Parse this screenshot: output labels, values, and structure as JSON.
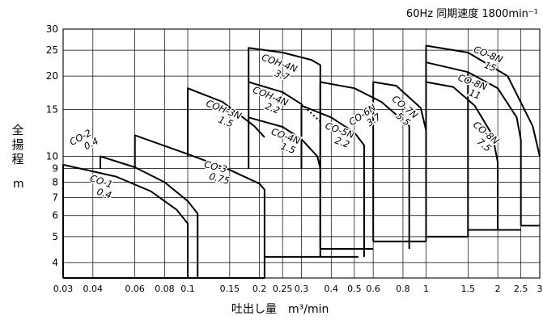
{
  "chart_data": {
    "type": "line",
    "title": "60Hz 同期速度 1800min⁻¹",
    "xlabel": "吐出し量　m³/min",
    "ylabel": "全揚程",
    "yunit": "m",
    "x_scale": "log",
    "y_scale": "log",
    "xlim": [
      0.03,
      3
    ],
    "ylim": [
      3.5,
      30
    ],
    "x_ticks": [
      0.03,
      0.04,
      0.06,
      0.08,
      0.1,
      0.15,
      0.2,
      0.25,
      0.3,
      0.4,
      0.5,
      0.6,
      0.8,
      1,
      1.5,
      2,
      2.5,
      3
    ],
    "x_tick_labels": [
      "0.03",
      "0.04",
      "0.06",
      "0.08",
      "0.1",
      "0.15",
      "0.2",
      "0.25",
      "0.3",
      "0.4",
      "0.5",
      "0.6",
      "0.8",
      "1",
      "1.5",
      "2",
      "2.5",
      "3"
    ],
    "y_ticks": [
      4,
      5,
      6,
      7,
      8,
      9,
      10,
      15,
      20,
      25,
      30
    ],
    "y_tick_labels": [
      "4",
      "5",
      "6",
      "7",
      "8",
      "9",
      "10",
      "15",
      "20",
      "25",
      "30"
    ],
    "grid": true,
    "series": [
      {
        "name": "CO-1 0.4",
        "label_lines": [
          "CO-1",
          "0.4"
        ],
        "label_at": [
          0.043,
          7.85
        ],
        "rotate": 18,
        "x": [
          0.03,
          0.03,
          0.05,
          0.07,
          0.09,
          0.1,
          0.1,
          0.03
        ],
        "y": [
          3.5,
          9.3,
          8.4,
          7.4,
          6.3,
          5.6,
          3.5,
          3.5
        ]
      },
      {
        "name": "CO-2 0.4",
        "label_lines": [
          "CO-2",
          "0.4"
        ],
        "label_at": [
          0.036,
          11.5
        ],
        "rotate": -28,
        "x": [
          0.043,
          0.043,
          0.06,
          0.08,
          0.1,
          0.11,
          0.11,
          0.043
        ],
        "y": [
          9.0,
          10.0,
          9.1,
          8.0,
          6.8,
          6.1,
          3.5,
          3.5
        ]
      },
      {
        "name": "CO-3 0.75",
        "label_lines": [
          "CO-3",
          "0.75"
        ],
        "label_at": [
          0.13,
          8.9
        ],
        "rotate": 14,
        "x": [
          0.06,
          0.06,
          0.1,
          0.15,
          0.2,
          0.21,
          0.21,
          0.06
        ],
        "y": [
          9.0,
          12.0,
          10.2,
          8.9,
          7.9,
          7.5,
          3.5,
          3.5
        ]
      },
      {
        "name": "COH-3N 1.5",
        "label_lines": [
          "COH-3N",
          "1.5"
        ],
        "label_at": [
          0.14,
          14.6
        ],
        "rotate": 22,
        "x": [
          0.1,
          0.1,
          0.14,
          0.19,
          0.21
        ],
        "y": [
          10.0,
          18.0,
          16.0,
          13.0,
          11.8
        ]
      },
      {
        "name": "CO-4N 1.5",
        "label_lines": [
          "CO-4N",
          "1.5"
        ],
        "label_at": [
          0.255,
          11.6
        ],
        "rotate": 20,
        "x": [
          0.18,
          0.18,
          0.25,
          0.3,
          0.35,
          0.36,
          0.36
        ],
        "y": [
          9.0,
          14.0,
          12.9,
          11.6,
          10.0,
          9.0,
          4.2
        ]
      },
      {
        "name": "COH-4N 3.7",
        "label_lines": [
          "COH-4N",
          "3.7"
        ],
        "label_at": [
          0.24,
          21.8
        ],
        "rotate": 20,
        "x": [
          0.18,
          0.18,
          0.25,
          0.33,
          0.36,
          0.36
        ],
        "y": [
          19.0,
          25.5,
          24.5,
          23.0,
          22.0,
          9.0
        ]
      },
      {
        "name": "COH-4N 2.2",
        "label_lines": [
          "COH-4N",
          "2.2"
        ],
        "label_at": [
          0.22,
          16.4
        ],
        "rotate": 22,
        "x": [
          0.18,
          0.18,
          0.25,
          0.3
        ],
        "y": [
          14.0,
          19.0,
          17.4,
          15.7
        ]
      },
      {
        "name": "CO-5N 2.2",
        "label_lines": [
          "CO-5N",
          "2.2"
        ],
        "label_at": [
          0.43,
          12.2
        ],
        "rotate": 20,
        "x": [
          0.3,
          0.3,
          0.4,
          0.5,
          0.55,
          0.55
        ],
        "y": [
          9.0,
          15.5,
          14.0,
          12.3,
          11.0,
          4.2
        ]
      },
      {
        "name": "CO-6N 3.7",
        "label_lines": [
          "CO-6N",
          "3.7"
        ],
        "label_at": [
          0.55,
          14.0
        ],
        "rotate": -34,
        "x": [
          0.36,
          0.36,
          0.5,
          0.65,
          0.85,
          0.85,
          0.85
        ],
        "y": [
          4.5,
          19.0,
          18.0,
          16.0,
          13.0,
          11.0,
          4.5
        ]
      },
      {
        "name": "CO-7N 5.5",
        "label_lines": [
          "CO-7N",
          "5.5"
        ],
        "label_at": [
          0.8,
          15.0
        ],
        "rotate": 40,
        "x": [
          0.6,
          0.6,
          0.75,
          0.95,
          1.0,
          1.0
        ],
        "y": [
          4.8,
          19.0,
          18.4,
          15.2,
          12.5,
          4.8
        ]
      },
      {
        "name": "CO-8N 15",
        "label_lines": [
          "CO-8N",
          "15"
        ],
        "label_at": [
          1.8,
          23.5
        ],
        "rotate": 22,
        "x": [
          1,
          1,
          1.5,
          2.2,
          2.8,
          3.0
        ],
        "y": [
          5.0,
          26.0,
          24.5,
          20.0,
          13.0,
          10.0
        ]
      },
      {
        "name": "CO-8N 11",
        "label_lines": [
          "CO-8N",
          "11"
        ],
        "label_at": [
          1.55,
          18.5
        ],
        "rotate": 20,
        "x": [
          1,
          1.5,
          2.0,
          2.4,
          2.5,
          2.5
        ],
        "y": [
          22.5,
          20.7,
          18.0,
          14.0,
          11.5,
          5.5
        ]
      },
      {
        "name": "CO-8N 7.5",
        "label_lines": [
          "CO-8N",
          "7.5"
        ],
        "label_at": [
          1.75,
          12.0
        ],
        "rotate": 40,
        "x": [
          1,
          1.3,
          1.6,
          1.9,
          2.0,
          2.0
        ],
        "y": [
          19.0,
          18.2,
          15.5,
          12.0,
          9.5,
          5.3
        ]
      }
    ],
    "extra_lines": [
      {
        "x": [
          0.36,
          0.36,
          0.52
        ],
        "y": [
          4.2,
          4.2,
          4.2
        ]
      },
      {
        "x": [
          0.21,
          0.36
        ],
        "y": [
          4.2,
          4.2
        ]
      },
      {
        "x": [
          0.36,
          0.6
        ],
        "y": [
          4.5,
          4.5
        ]
      },
      {
        "x": [
          0.6,
          1.0
        ],
        "y": [
          4.8,
          4.8
        ]
      },
      {
        "x": [
          1.0,
          1.5
        ],
        "y": [
          5.0,
          5.0
        ]
      },
      {
        "x": [
          1.5,
          2.5
        ],
        "y": [
          5.3,
          5.3
        ]
      },
      {
        "x": [
          2.5,
          3.0
        ],
        "y": [
          5.5,
          5.5
        ]
      },
      {
        "x": [
          1.5,
          1.5
        ],
        "y": [
          5.0,
          20.7
        ]
      }
    ],
    "dotted": [
      {
        "x": [
          0.3,
          0.36
        ],
        "y": [
          15.7,
          13.5
        ]
      }
    ]
  }
}
